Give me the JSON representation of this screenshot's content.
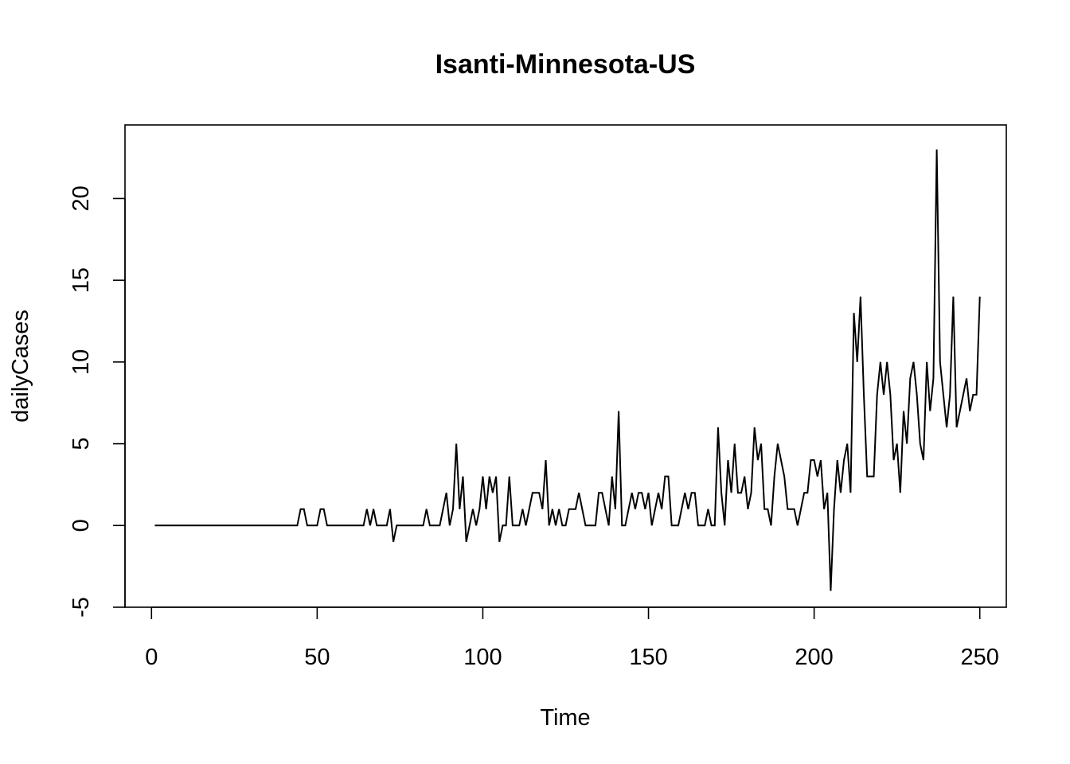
{
  "chart_data": {
    "type": "line",
    "title": "Isanti-Minnesota-US",
    "xlabel": "Time",
    "ylabel": "dailyCases",
    "xlim": [
      -8,
      258
    ],
    "ylim": [
      -5,
      24.5
    ],
    "xticks": [
      0,
      50,
      100,
      150,
      200,
      250
    ],
    "yticks": [
      -5,
      0,
      5,
      10,
      15,
      20
    ],
    "xtick_labels": [
      "0",
      "50",
      "100",
      "150",
      "200",
      "250"
    ],
    "ytick_labels": [
      "-5",
      "0",
      "5",
      "10",
      "15",
      "20"
    ],
    "grid": false,
    "legend": "none",
    "series": [
      {
        "name": "dailyCases",
        "x_start": 1,
        "values": [
          0,
          0,
          0,
          0,
          0,
          0,
          0,
          0,
          0,
          0,
          0,
          0,
          0,
          0,
          0,
          0,
          0,
          0,
          0,
          0,
          0,
          0,
          0,
          0,
          0,
          0,
          0,
          0,
          0,
          0,
          0,
          0,
          0,
          0,
          0,
          0,
          0,
          0,
          0,
          0,
          0,
          0,
          0,
          0,
          1,
          1,
          0,
          0,
          0,
          0,
          1,
          1,
          0,
          0,
          0,
          0,
          0,
          0,
          0,
          0,
          0,
          0,
          0,
          0,
          1,
          0,
          1,
          0,
          0,
          0,
          0,
          1,
          -1,
          0,
          0,
          0,
          0,
          0,
          0,
          0,
          0,
          0,
          1,
          0,
          0,
          0,
          0,
          1,
          2,
          0,
          1,
          5,
          1,
          3,
          -1,
          0,
          1,
          0,
          1,
          3,
          1,
          3,
          2,
          3,
          -1,
          0,
          0,
          3,
          0,
          0,
          0,
          1,
          0,
          1,
          2,
          2,
          2,
          1,
          4,
          0,
          1,
          0,
          1,
          0,
          0,
          1,
          1,
          1,
          2,
          1,
          0,
          0,
          0,
          0,
          2,
          2,
          1,
          0,
          3,
          1,
          7,
          0,
          0,
          1,
          2,
          1,
          2,
          2,
          1,
          2,
          0,
          1,
          2,
          1,
          3,
          3,
          0,
          0,
          0,
          1,
          2,
          1,
          2,
          2,
          0,
          0,
          0,
          1,
          0,
          0,
          6,
          2,
          0,
          4,
          2,
          5,
          2,
          2,
          3,
          1,
          2,
          6,
          4,
          5,
          1,
          1,
          0,
          3,
          5,
          4,
          3,
          1,
          1,
          1,
          0,
          1,
          2,
          2,
          4,
          4,
          3,
          4,
          1,
          2,
          -4,
          1,
          4,
          2,
          4,
          5,
          2,
          13,
          10,
          14,
          8,
          3,
          3,
          3,
          8,
          10,
          8,
          10,
          8,
          4,
          5,
          2,
          7,
          5,
          9,
          10,
          8,
          5,
          4,
          10,
          7,
          9,
          23,
          10,
          8,
          6,
          8,
          14,
          6,
          7,
          8,
          9,
          7,
          8,
          8,
          14
        ]
      }
    ]
  }
}
